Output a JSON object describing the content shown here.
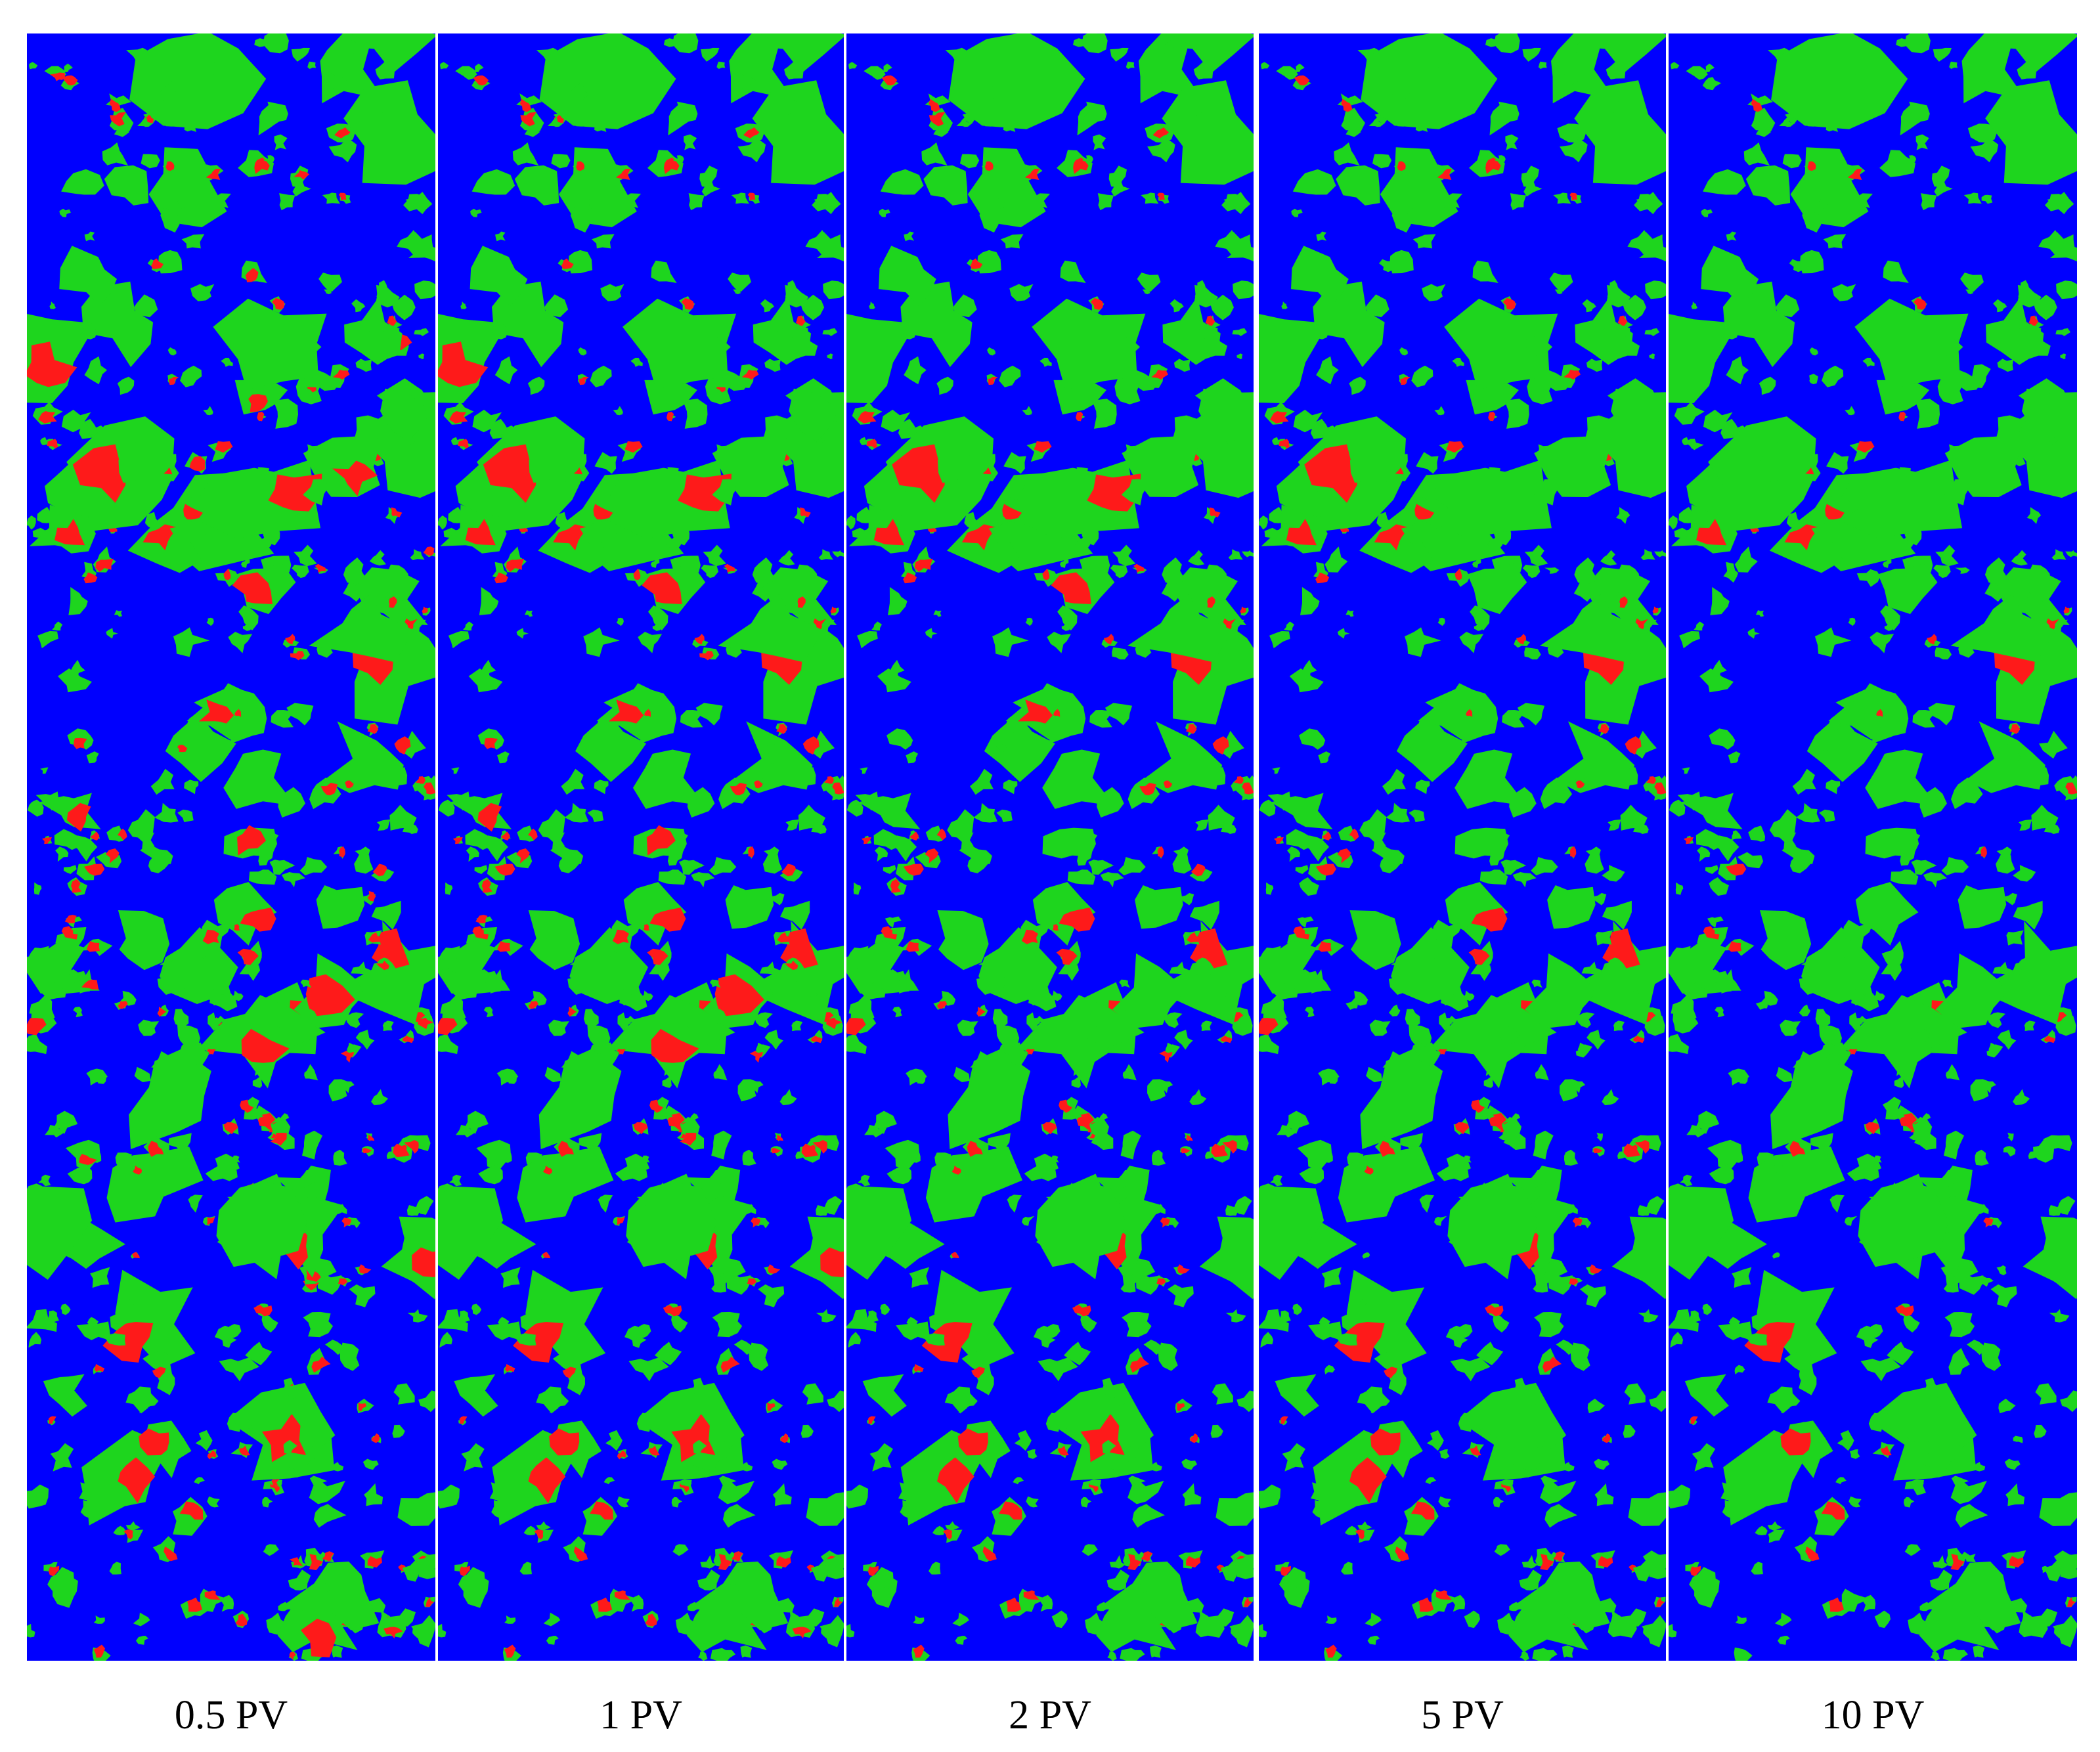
{
  "panels": [
    {
      "label": "0.5 PV"
    },
    {
      "label": "1 PV"
    },
    {
      "label": "2 PV"
    },
    {
      "label": "5 PV"
    },
    {
      "label": "10 PV"
    }
  ]
}
